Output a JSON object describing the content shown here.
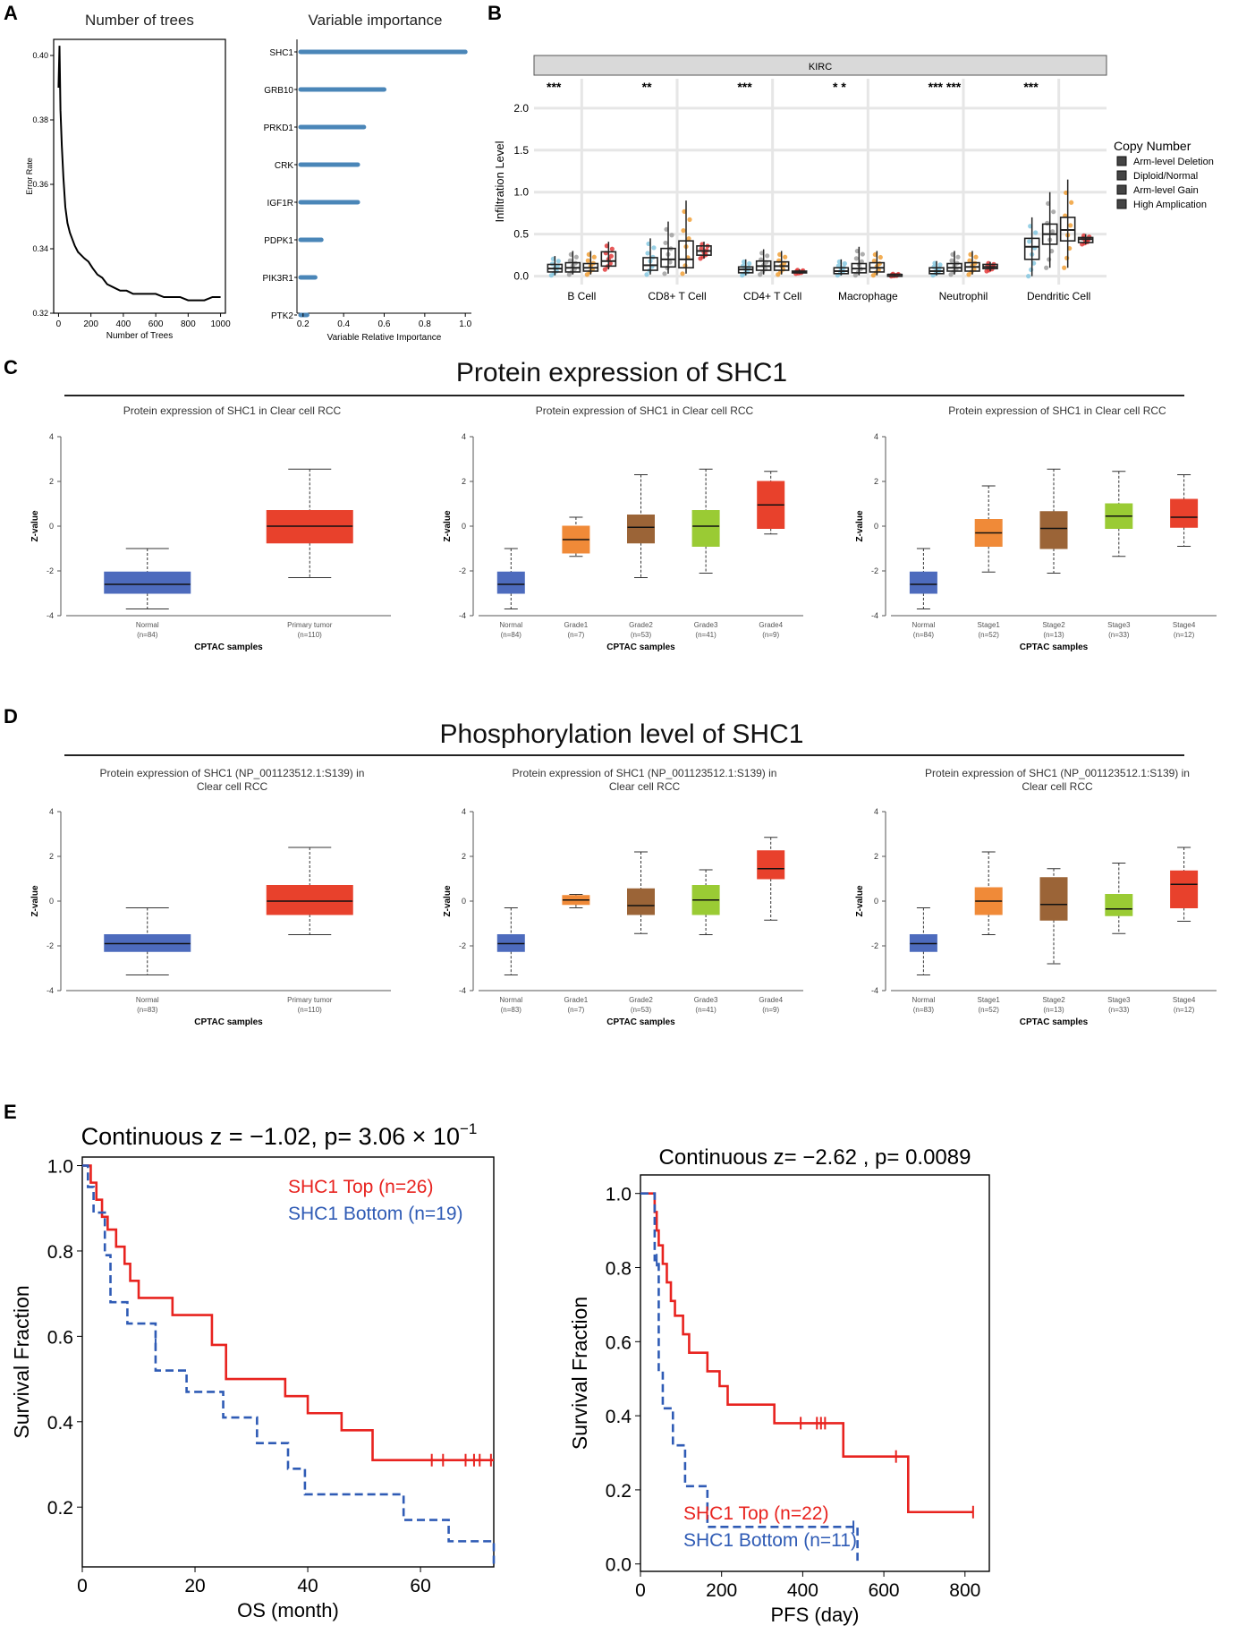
{
  "figure": {
    "panel_letters": [
      "A",
      "B",
      "C",
      "D",
      "E"
    ],
    "section_c_title": "Protein expression of SHC1",
    "section_d_title": "Phosphorylation level of SHC1"
  },
  "colors": {
    "steel": "#4a86b8",
    "box_blue": "#4d6bbd",
    "box_orange": "#f08a38",
    "box_brown": "#9b6437",
    "box_green": "#9acb34",
    "box_red": "#e8412c",
    "km_red": "#e8231f",
    "km_blue": "#2f5bb5"
  },
  "chart_data": [
    {
      "id": "A1",
      "type": "line",
      "title": "Number of trees",
      "xlabel": "Number of Trees",
      "ylabel": "Error Rate",
      "xlim": [
        -30,
        1030
      ],
      "ylim": [
        0.32,
        0.405
      ],
      "xticks": [
        0,
        200,
        400,
        600,
        800,
        1000
      ],
      "yticks": [
        0.32,
        0.34,
        0.36,
        0.38,
        0.4
      ],
      "ytick_labels": [
        "0.32",
        "0.34",
        "0.36",
        "0.38",
        "0.40"
      ],
      "x": [
        0,
        6,
        12,
        20,
        30,
        42,
        55,
        70,
        85,
        100,
        120,
        140,
        160,
        185,
        210,
        240,
        270,
        300,
        340,
        380,
        420,
        460,
        500,
        550,
        600,
        650,
        700,
        750,
        800,
        850,
        900,
        950,
        1000
      ],
      "y": [
        0.39,
        0.403,
        0.383,
        0.372,
        0.362,
        0.353,
        0.348,
        0.345,
        0.343,
        0.341,
        0.339,
        0.338,
        0.337,
        0.336,
        0.334,
        0.332,
        0.331,
        0.329,
        0.328,
        0.327,
        0.327,
        0.326,
        0.326,
        0.326,
        0.326,
        0.325,
        0.325,
        0.325,
        0.324,
        0.324,
        0.324,
        0.325,
        0.325
      ]
    },
    {
      "id": "A2",
      "type": "bar",
      "title": "Variable importance",
      "xlabel": "Variable Relative Importance",
      "categories": [
        "SHC1",
        "GRB10",
        "PRKD1",
        "CRK",
        "IGF1R",
        "PDPK1",
        "PIK3R1",
        "PTK2"
      ],
      "values": [
        1.0,
        0.6,
        0.5,
        0.47,
        0.47,
        0.29,
        0.26,
        0.22
      ],
      "xlim": [
        0.17,
        1.03
      ],
      "xticks": [
        0.2,
        0.4,
        0.6,
        0.8,
        1.0
      ],
      "xtick_labels": [
        "0.2",
        "0.4",
        "0.6",
        "0.8",
        "1.0"
      ]
    },
    {
      "id": "B",
      "type": "box",
      "strip_label": "KIRC",
      "ylabel": "Infiltration Level",
      "ylim": [
        -0.1,
        2.35
      ],
      "yticks": [
        0,
        0.5,
        1,
        1.5,
        2
      ],
      "ytick_labels": [
        "0.0",
        "0.5",
        "1.0",
        "1.5",
        "2.0"
      ],
      "categories": [
        "B Cell",
        "CD8+ T Cell",
        "CD4+ T Cell",
        "Macrophage",
        "Neutrophil",
        "Dendritic Cell"
      ],
      "significance": [
        "***",
        "**",
        "***",
        "*  *",
        "***  ***",
        "***"
      ],
      "legend_title": "Copy Number",
      "legend": [
        "Arm-level Deletion",
        "Diploid/Normal",
        "Arm-level Gain",
        "High Amplication"
      ],
      "series_colors": [
        "#7fc6e0",
        "#9a9a9a",
        "#f09a2a",
        "#e03030"
      ],
      "groups": [
        [
          [
            0.01,
            0.05,
            0.09,
            0.14,
            0.24
          ],
          [
            0.02,
            0.05,
            0.1,
            0.16,
            0.3
          ],
          [
            0.02,
            0.06,
            0.1,
            0.15,
            0.3
          ],
          [
            0.08,
            0.12,
            0.18,
            0.29,
            0.41
          ]
        ],
        [
          [
            0.02,
            0.07,
            0.13,
            0.22,
            0.45
          ],
          [
            0.03,
            0.11,
            0.2,
            0.33,
            0.65
          ],
          [
            0.03,
            0.1,
            0.2,
            0.42,
            0.9
          ],
          [
            0.21,
            0.25,
            0.3,
            0.36,
            0.41
          ]
        ],
        [
          [
            0.01,
            0.04,
            0.08,
            0.11,
            0.2
          ],
          [
            0.02,
            0.07,
            0.12,
            0.18,
            0.32
          ],
          [
            0.02,
            0.07,
            0.12,
            0.17,
            0.3
          ],
          [
            0.03,
            0.04,
            0.05,
            0.06,
            0.08
          ]
        ],
        [
          [
            0.01,
            0.03,
            0.06,
            0.1,
            0.2
          ],
          [
            0.01,
            0.04,
            0.09,
            0.15,
            0.35
          ],
          [
            0.01,
            0.05,
            0.1,
            0.16,
            0.3
          ],
          [
            0.0,
            0.01,
            0.02,
            0.02,
            0.03
          ]
        ],
        [
          [
            0.01,
            0.03,
            0.06,
            0.1,
            0.18
          ],
          [
            0.02,
            0.06,
            0.1,
            0.15,
            0.3
          ],
          [
            0.02,
            0.06,
            0.11,
            0.16,
            0.3
          ],
          [
            0.06,
            0.09,
            0.11,
            0.14,
            0.17
          ]
        ],
        [
          [
            0.0,
            0.2,
            0.35,
            0.45,
            0.7
          ],
          [
            0.1,
            0.38,
            0.5,
            0.62,
            1.0
          ],
          [
            0.1,
            0.42,
            0.55,
            0.7,
            1.15
          ],
          [
            0.38,
            0.4,
            0.44,
            0.46,
            0.5
          ]
        ]
      ]
    },
    {
      "id": "C1",
      "type": "box",
      "title": "Protein expression of SHC1 in Clear cell RCC",
      "xlabel": "CPTAC samples",
      "ylabel": "Z-value",
      "ylim": [
        -4,
        4
      ],
      "yticks": [
        -4,
        -2,
        0,
        2,
        4
      ],
      "ytick_labels": [
        "-4",
        "-2",
        "0",
        "2",
        "4"
      ],
      "categories": [
        "Normal",
        "Primary tumor"
      ],
      "ns": [
        "(n=84)",
        "(n=110)"
      ],
      "boxes": [
        [
          -3.7,
          -3.0,
          -2.6,
          -2.05,
          -1.0
        ],
        [
          -2.3,
          -0.75,
          0.0,
          0.7,
          2.55
        ]
      ],
      "box_colors": [
        "#4d6bbd",
        "#e8412c"
      ]
    },
    {
      "id": "C2",
      "type": "box",
      "title": "Protein expression of SHC1 in Clear cell RCC",
      "xlabel": "CPTAC samples",
      "ylabel": "Z-value",
      "ylim": [
        -4,
        4
      ],
      "yticks": [
        -4,
        -2,
        0,
        2,
        4
      ],
      "ytick_labels": [
        "-4",
        "-2",
        "0",
        "2",
        "4"
      ],
      "categories": [
        "Normal",
        "Grade1",
        "Grade2",
        "Grade3",
        "Grade4"
      ],
      "ns": [
        "(n=84)",
        "(n=7)",
        "(n=53)",
        "(n=41)",
        "(n=9)"
      ],
      "boxes": [
        [
          -3.7,
          -3.0,
          -2.6,
          -2.05,
          -1.0
        ],
        [
          -1.35,
          -1.2,
          -0.6,
          0.0,
          0.4
        ],
        [
          -2.3,
          -0.75,
          -0.05,
          0.5,
          2.3
        ],
        [
          -2.1,
          -0.9,
          0.0,
          0.7,
          2.55
        ],
        [
          -0.35,
          -0.1,
          0.95,
          2.0,
          2.45
        ]
      ],
      "box_colors": [
        "#4d6bbd",
        "#f08a38",
        "#9b6437",
        "#9acb34",
        "#e8412c"
      ]
    },
    {
      "id": "C3",
      "type": "box",
      "title": "Protein expression of SHC1 in Clear cell RCC",
      "xlabel": "CPTAC samples",
      "ylabel": "Z-value",
      "ylim": [
        -4,
        4
      ],
      "yticks": [
        -4,
        -2,
        0,
        2,
        4
      ],
      "ytick_labels": [
        "-4",
        "-2",
        "0",
        "2",
        "4"
      ],
      "categories": [
        "Normal",
        "Stage1",
        "Stage2",
        "Stage3",
        "Stage4"
      ],
      "ns": [
        "(n=84)",
        "(n=52)",
        "(n=13)",
        "(n=33)",
        "(n=12)"
      ],
      "boxes": [
        [
          -3.7,
          -3.0,
          -2.6,
          -2.05,
          -1.0
        ],
        [
          -2.05,
          -0.9,
          -0.3,
          0.3,
          1.8
        ],
        [
          -2.1,
          -1.0,
          -0.1,
          0.65,
          2.55
        ],
        [
          -1.35,
          -0.1,
          0.45,
          1.0,
          2.45
        ],
        [
          -0.9,
          -0.05,
          0.4,
          1.2,
          2.3
        ]
      ],
      "box_colors": [
        "#4d6bbd",
        "#f08a38",
        "#9b6437",
        "#9acb34",
        "#e8412c"
      ]
    },
    {
      "id": "D1",
      "type": "box",
      "title": "Protein expression of SHC1 (NP_001123512.1:S139) in Clear cell RCC",
      "xlabel": "CPTAC samples",
      "ylabel": "Z-value",
      "ylim": [
        -4,
        4
      ],
      "yticks": [
        -4,
        -2,
        0,
        2,
        4
      ],
      "ytick_labels": [
        "-4",
        "-2",
        "0",
        "2",
        "4"
      ],
      "categories": [
        "Normal",
        "Primary tumor"
      ],
      "ns": [
        "(n=83)",
        "(n=110)"
      ],
      "boxes": [
        [
          -3.3,
          -2.25,
          -1.9,
          -1.5,
          -0.3
        ],
        [
          -1.5,
          -0.6,
          0.0,
          0.7,
          2.4
        ]
      ],
      "box_colors": [
        "#4d6bbd",
        "#e8412c"
      ]
    },
    {
      "id": "D2",
      "type": "box",
      "title": "Protein expression of SHC1 (NP_001123512.1:S139) in Clear cell RCC",
      "xlabel": "CPTAC samples",
      "ylabel": "Z-value",
      "ylim": [
        -4,
        4
      ],
      "yticks": [
        -4,
        -2,
        0,
        2,
        4
      ],
      "ytick_labels": [
        "-4",
        "-2",
        "0",
        "2",
        "4"
      ],
      "categories": [
        "Normal",
        "Grade1",
        "Grade2",
        "Grade3",
        "Grade4"
      ],
      "ns": [
        "(n=83)",
        "(n=7)",
        "(n=53)",
        "(n=41)",
        "(n=9)"
      ],
      "boxes": [
        [
          -3.3,
          -2.25,
          -1.9,
          -1.5,
          -0.3
        ],
        [
          -0.3,
          -0.15,
          0.05,
          0.25,
          0.3
        ],
        [
          -1.45,
          -0.6,
          -0.2,
          0.55,
          2.2
        ],
        [
          -1.5,
          -0.6,
          0.05,
          0.7,
          1.4
        ],
        [
          -0.85,
          1.0,
          1.45,
          2.25,
          2.85
        ]
      ],
      "box_colors": [
        "#4d6bbd",
        "#f08a38",
        "#9b6437",
        "#9acb34",
        "#e8412c"
      ]
    },
    {
      "id": "D3",
      "type": "box",
      "title": "Protein expression of SHC1 (NP_001123512.1:S139) in Clear cell RCC",
      "xlabel": "CPTAC samples",
      "ylabel": "Z-value",
      "ylim": [
        -4,
        4
      ],
      "yticks": [
        -4,
        -2,
        0,
        2,
        4
      ],
      "ytick_labels": [
        "-4",
        "-2",
        "0",
        "2",
        "4"
      ],
      "categories": [
        "Normal",
        "Stage1",
        "Stage2",
        "Stage3",
        "Stage4"
      ],
      "ns": [
        "(n=83)",
        "(n=52)",
        "(n=13)",
        "(n=33)",
        "(n=12)"
      ],
      "boxes": [
        [
          -3.3,
          -2.25,
          -1.9,
          -1.5,
          -0.3
        ],
        [
          -1.5,
          -0.6,
          0.0,
          0.6,
          2.2
        ],
        [
          -2.8,
          -0.85,
          -0.15,
          1.05,
          1.45
        ],
        [
          -1.45,
          -0.65,
          -0.35,
          0.3,
          1.7
        ],
        [
          -0.9,
          -0.3,
          0.75,
          1.35,
          2.4
        ]
      ],
      "box_colors": [
        "#4d6bbd",
        "#f08a38",
        "#9b6437",
        "#9acb34",
        "#e8412c"
      ]
    },
    {
      "id": "E1",
      "type": "line",
      "subtype": "kaplan-meier",
      "title_pre": "Continuous z = −1.02, p= 3.06 × 10",
      "title_sup": "−1",
      "xlabel": "OS (month)",
      "ylabel": "Survival Fraction",
      "xlim": [
        0,
        73
      ],
      "ylim": [
        0.06,
        1.02
      ],
      "xticks": [
        0,
        20,
        40,
        60
      ],
      "xtick_labels": [
        "0",
        "20",
        "40",
        "60"
      ],
      "yticks": [
        0.2,
        0.4,
        0.6,
        0.8,
        1.0
      ],
      "ytick_labels": [
        "0.2",
        "0.4",
        "0.6",
        "0.8",
        "1.0"
      ],
      "legend_loc": "top-right",
      "series": [
        {
          "name": "SHC1 Top (n=26)",
          "color": "#e8231f",
          "dash": false,
          "x": [
            0,
            1.5,
            2.5,
            3.5,
            4.5,
            6,
            7.5,
            8.5,
            10,
            16,
            23,
            25.5,
            36,
            40,
            46,
            51.5,
            73
          ],
          "y": [
            1.0,
            0.96,
            0.92,
            0.88,
            0.85,
            0.81,
            0.77,
            0.73,
            0.69,
            0.65,
            0.58,
            0.5,
            0.46,
            0.42,
            0.38,
            0.31,
            0.31
          ],
          "censor_x": [
            62,
            64,
            68,
            69.5,
            70.5,
            72.5
          ],
          "censor_y": [
            0.31,
            0.31,
            0.31,
            0.31,
            0.31,
            0.31
          ]
        },
        {
          "name": "SHC1 Bottom (n=19)",
          "color": "#2f5bb5",
          "dash": true,
          "x": [
            0,
            1,
            2,
            4,
            5,
            8,
            13,
            18.5,
            25,
            31,
            36.5,
            39.5,
            57,
            65,
            73
          ],
          "y": [
            1.0,
            0.95,
            0.89,
            0.79,
            0.68,
            0.63,
            0.52,
            0.47,
            0.41,
            0.35,
            0.29,
            0.23,
            0.17,
            0.12,
            0.06
          ],
          "censor_x": [
            13
          ],
          "censor_y": [
            0.58
          ]
        }
      ]
    },
    {
      "id": "E2",
      "type": "line",
      "subtype": "kaplan-meier",
      "title": "Continuous z= −2.62 , p= 0.0089",
      "xlabel": "PFS (day)",
      "ylabel": "Survival Fraction",
      "xlim": [
        0,
        860
      ],
      "ylim": [
        -0.02,
        1.05
      ],
      "xticks": [
        0,
        200,
        400,
        600,
        800
      ],
      "xtick_labels": [
        "0",
        "200",
        "400",
        "600",
        "800"
      ],
      "yticks": [
        0.0,
        0.2,
        0.4,
        0.6,
        0.8,
        1.0
      ],
      "ytick_labels": [
        "0.0",
        "0.2",
        "0.4",
        "0.6",
        "0.8",
        "1.0"
      ],
      "legend_loc": "bottom-left",
      "series": [
        {
          "name": "SHC1 Top (n=22)",
          "color": "#e8231f",
          "dash": false,
          "x": [
            0,
            35,
            40,
            45,
            55,
            65,
            75,
            85,
            105,
            120,
            135,
            165,
            195,
            215,
            250,
            330,
            500,
            660,
            820
          ],
          "y": [
            1.0,
            0.95,
            0.9,
            0.86,
            0.81,
            0.76,
            0.71,
            0.67,
            0.62,
            0.57,
            0.57,
            0.52,
            0.48,
            0.43,
            0.43,
            0.38,
            0.29,
            0.14,
            0.14
          ],
          "censor_x": [
            395,
            435,
            445,
            455,
            630,
            820
          ],
          "censor_y": [
            0.38,
            0.38,
            0.38,
            0.38,
            0.29,
            0.14
          ]
        },
        {
          "name": "SHC1 Bottom (n=11)",
          "color": "#2f5bb5",
          "dash": true,
          "x": [
            0,
            35,
            45,
            55,
            80,
            110,
            165,
            535
          ],
          "y": [
            1.0,
            0.82,
            0.52,
            0.42,
            0.32,
            0.21,
            0.1,
            0.0
          ],
          "censor_x": [
            40,
            525
          ],
          "censor_y": [
            0.82,
            0.1
          ]
        }
      ]
    }
  ]
}
